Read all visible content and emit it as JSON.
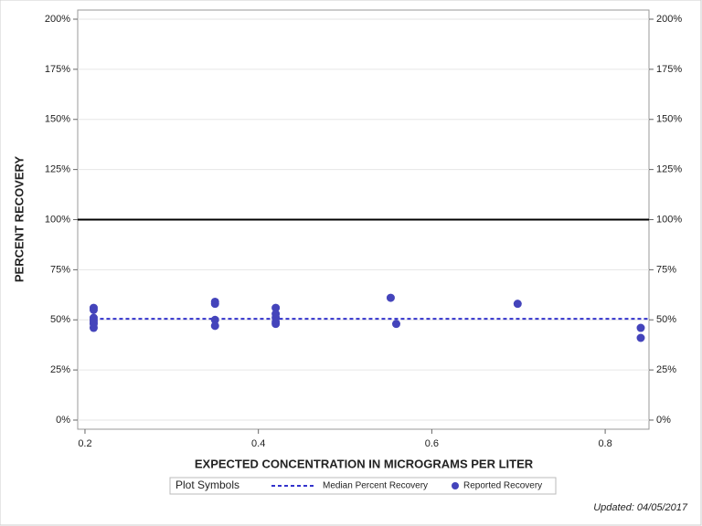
{
  "chart_data": {
    "type": "scatter",
    "y_label": "PERCENT RECOVERY",
    "x_label": "EXPECTED CONCENTRATION IN MICROGRAMS PER LITER",
    "xlim": [
      0.1916,
      0.8505
    ],
    "xticks": [
      0.2,
      0.4,
      0.6,
      0.8
    ],
    "ylim": [
      -4.56,
      204.56
    ],
    "yticks": [
      {
        "value": 0,
        "label": "0%"
      },
      {
        "value": 25,
        "label": "25%"
      },
      {
        "value": 50,
        "label": "50%"
      },
      {
        "value": 75,
        "label": "75%"
      },
      {
        "value": 100,
        "label": "100%"
      },
      {
        "value": 125,
        "label": "125%"
      },
      {
        "value": 150,
        "label": "150%"
      },
      {
        "value": 175,
        "label": "175%"
      },
      {
        "value": 200,
        "label": "200%"
      }
    ],
    "grid": true,
    "reference_line": 100,
    "legend_title": "Plot Symbols",
    "series": [
      {
        "name": "Median Percent Recovery",
        "style": "dashed-line",
        "color": "#3333cc",
        "x": [
          0.21,
          0.8505
        ],
        "values": [
          50.5,
          50.5
        ]
      },
      {
        "name": "Reported Recovery",
        "style": "points",
        "color": "#4444bb",
        "x": [
          0.21,
          0.21,
          0.21,
          0.21,
          0.21,
          0.21,
          0.21,
          0.35,
          0.35,
          0.35,
          0.35,
          0.42,
          0.42,
          0.42,
          0.42,
          0.42,
          0.5526,
          0.559,
          0.699,
          0.841,
          0.841
        ],
        "values": [
          56,
          55,
          51,
          50,
          49,
          48,
          46,
          59,
          58,
          50,
          47,
          56,
          53,
          51,
          49,
          48,
          61,
          48,
          58,
          46,
          41
        ]
      }
    ],
    "footer": "Updated: 04/05/2017"
  }
}
